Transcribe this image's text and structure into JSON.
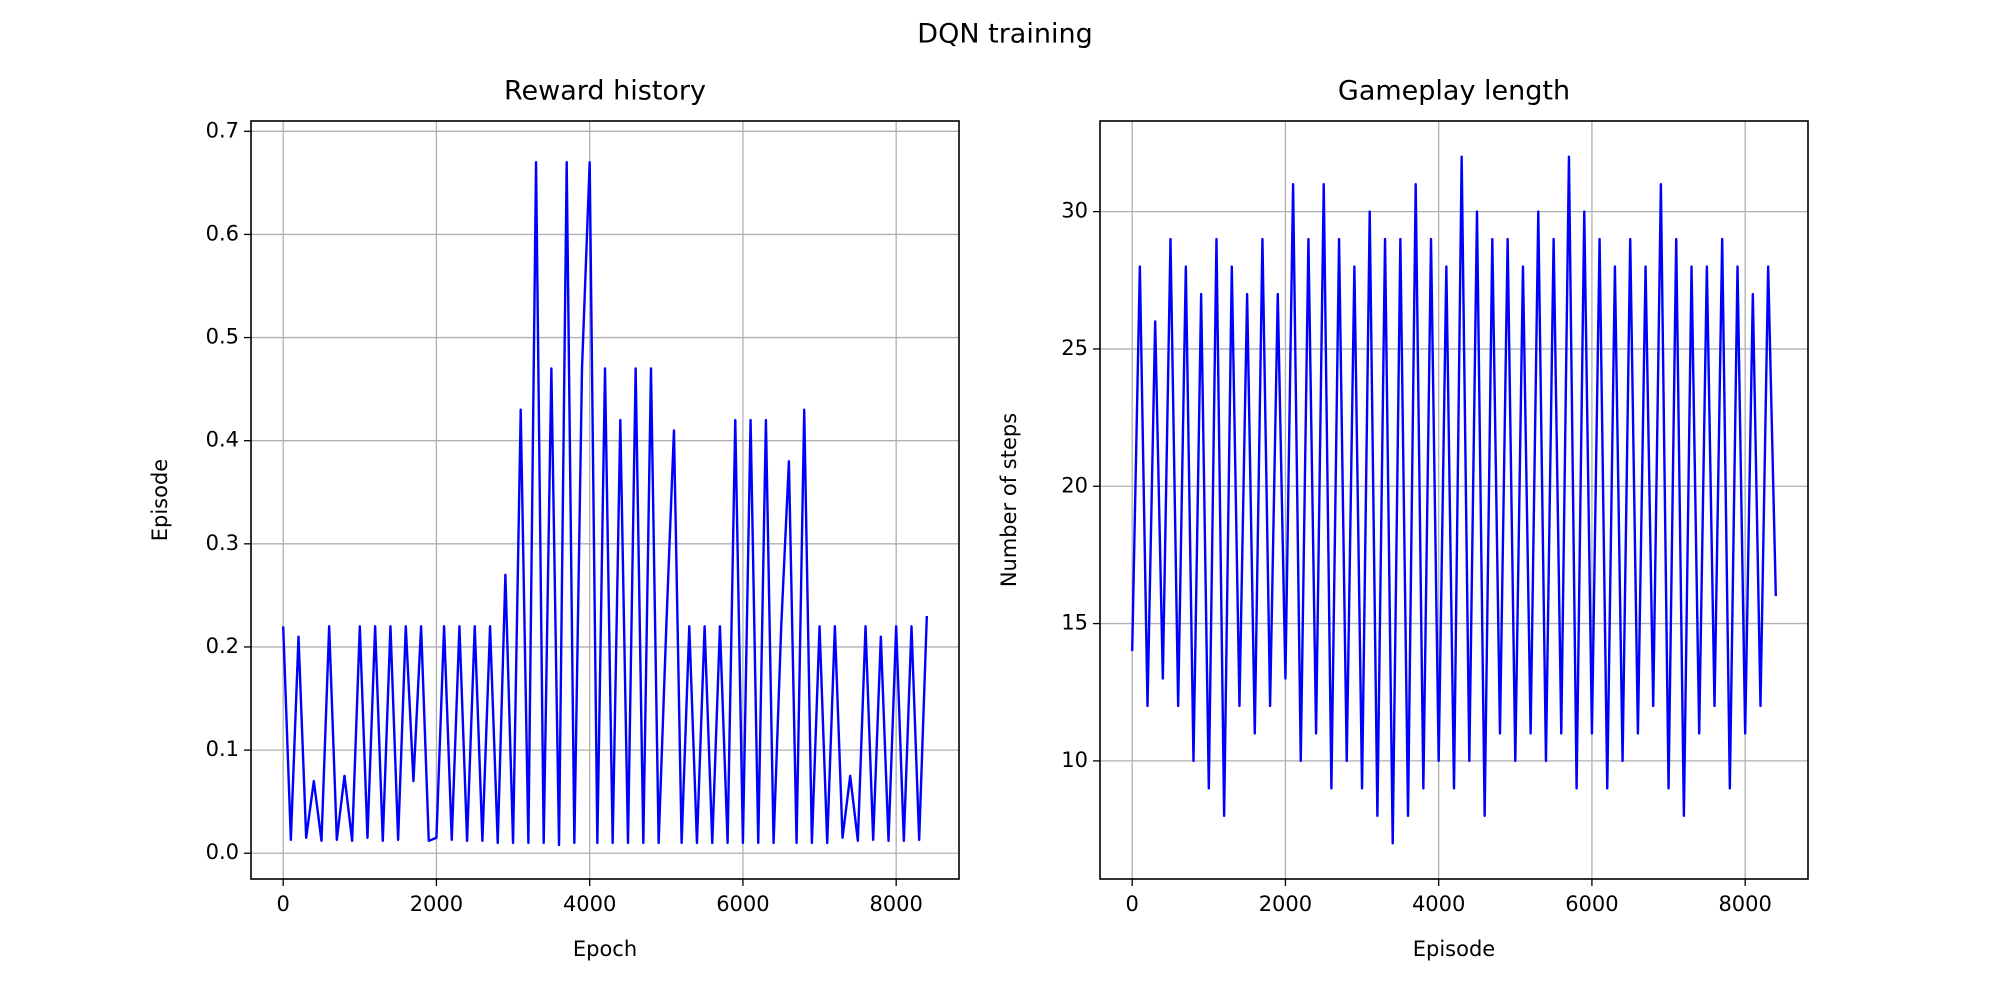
{
  "title": "DQN training",
  "chart_data": [
    {
      "type": "line",
      "title": "Reward history",
      "x_label": "Epoch",
      "y_label": "Episode",
      "color": "#0000ff",
      "grid": true,
      "xlim": [
        -420,
        8820
      ],
      "xticks": [
        0,
        2000,
        4000,
        6000,
        8000
      ],
      "ylim": [
        -0.025,
        0.71
      ],
      "yticks": [
        {
          "value": 0,
          "label": "0.0"
        },
        0.1,
        0.2,
        0.3,
        0.4,
        0.5,
        0.6,
        0.7
      ],
      "x": [
        0,
        100,
        200,
        300,
        400,
        500,
        600,
        700,
        800,
        900,
        1000,
        1100,
        1200,
        1300,
        1400,
        1500,
        1600,
        1700,
        1800,
        1900,
        2000,
        2100,
        2200,
        2300,
        2400,
        2500,
        2600,
        2700,
        2800,
        2900,
        3000,
        3100,
        3200,
        3300,
        3400,
        3500,
        3600,
        3700,
        3800,
        3900,
        4000,
        4100,
        4200,
        4300,
        4400,
        4500,
        4600,
        4700,
        4800,
        4900,
        5000,
        5100,
        5200,
        5300,
        5400,
        5500,
        5600,
        5700,
        5800,
        5900,
        6000,
        6100,
        6200,
        6300,
        6400,
        6500,
        6600,
        6700,
        6800,
        6900,
        7000,
        7100,
        7200,
        7300,
        7400,
        7500,
        7600,
        7700,
        7800,
        7900,
        8000,
        8100,
        8200,
        8300,
        8400
      ],
      "values": [
        0.22,
        0.013,
        0.21,
        0.015,
        0.07,
        0.012,
        0.22,
        0.013,
        0.075,
        0.012,
        0.22,
        0.015,
        0.22,
        0.012,
        0.22,
        0.013,
        0.22,
        0.07,
        0.22,
        0.012,
        0.015,
        0.22,
        0.013,
        0.22,
        0.012,
        0.22,
        0.012,
        0.22,
        0.01,
        0.27,
        0.01,
        0.43,
        0.01,
        0.67,
        0.01,
        0.47,
        0.008,
        0.67,
        0.01,
        0.47,
        0.67,
        0.01,
        0.47,
        0.01,
        0.42,
        0.01,
        0.47,
        0.01,
        0.47,
        0.01,
        0.22,
        0.41,
        0.01,
        0.22,
        0.01,
        0.22,
        0.01,
        0.22,
        0.01,
        0.42,
        0.01,
        0.42,
        0.01,
        0.42,
        0.01,
        0.22,
        0.38,
        0.01,
        0.43,
        0.01,
        0.22,
        0.01,
        0.22,
        0.015,
        0.075,
        0.012,
        0.22,
        0.013,
        0.21,
        0.012,
        0.22,
        0.012,
        0.22,
        0.013,
        0.23
      ]
    },
    {
      "type": "line",
      "title": "Gameplay length",
      "x_label": "Episode",
      "y_label": "Number of steps",
      "color": "#0000ff",
      "grid": true,
      "xlim": [
        -420,
        8820
      ],
      "xticks": [
        0,
        2000,
        4000,
        6000,
        8000
      ],
      "ylim": [
        5.7,
        33.3
      ],
      "yticks": [
        10,
        15,
        20,
        25,
        30
      ],
      "x": [
        0,
        100,
        200,
        300,
        400,
        500,
        600,
        700,
        800,
        900,
        1000,
        1100,
        1200,
        1300,
        1400,
        1500,
        1600,
        1700,
        1800,
        1900,
        2000,
        2100,
        2200,
        2300,
        2400,
        2500,
        2600,
        2700,
        2800,
        2900,
        3000,
        3100,
        3200,
        3300,
        3400,
        3500,
        3600,
        3700,
        3800,
        3900,
        4000,
        4100,
        4200,
        4300,
        4400,
        4500,
        4600,
        4700,
        4800,
        4900,
        5000,
        5100,
        5200,
        5300,
        5400,
        5500,
        5600,
        5700,
        5800,
        5900,
        6000,
        6100,
        6200,
        6300,
        6400,
        6500,
        6600,
        6700,
        6800,
        6900,
        7000,
        7100,
        7200,
        7300,
        7400,
        7500,
        7600,
        7700,
        7800,
        7900,
        8000,
        8100,
        8200,
        8300,
        8400
      ],
      "values": [
        14,
        28,
        12,
        26,
        13,
        29,
        12,
        28,
        10,
        27,
        9,
        29,
        8,
        28,
        12,
        27,
        11,
        29,
        12,
        27,
        13,
        31,
        10,
        29,
        11,
        31,
        9,
        29,
        10,
        28,
        9,
        30,
        8,
        29,
        7,
        29,
        8,
        31,
        9,
        29,
        10,
        28,
        9,
        32,
        10,
        30,
        8,
        29,
        11,
        29,
        10,
        28,
        11,
        30,
        10,
        29,
        11,
        32,
        9,
        30,
        11,
        29,
        9,
        28,
        10,
        29,
        11,
        28,
        12,
        31,
        9,
        29,
        8,
        28,
        11,
        28,
        12,
        29,
        9,
        28,
        11,
        27,
        12,
        28,
        16
      ]
    }
  ]
}
